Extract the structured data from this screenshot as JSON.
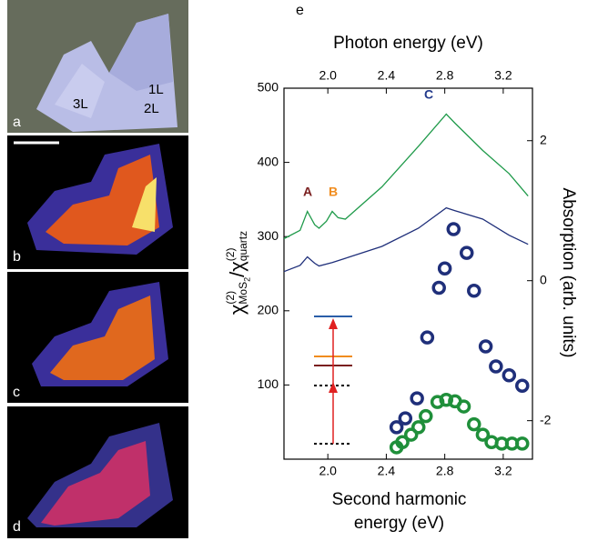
{
  "panels": [
    {
      "label": "a",
      "annotations": [
        "3L",
        "2L",
        "1L"
      ]
    },
    {
      "label": "b"
    },
    {
      "label": "c"
    },
    {
      "label": "d"
    }
  ],
  "figure_label": "e",
  "chart_data": {
    "type": "scatter",
    "xlabel_lines": [
      "Second harmonic",
      "energy (eV)"
    ],
    "top_xlabel": "Photon energy (eV)",
    "ylabel_parts": [
      {
        "text": "χ"
      },
      {
        "text": "(2)",
        "pos": "sup"
      },
      {
        "text": "MoS",
        "pos": "sub"
      },
      {
        "text": "2",
        "pos": "subsub"
      },
      {
        "text": "/χ"
      },
      {
        "text": "(2)",
        "pos": "sup"
      },
      {
        "text": "quartz",
        "pos": "sub"
      }
    ],
    "y2label": "Absorption (arb. units)",
    "xlim": [
      1.7,
      3.4
    ],
    "xticks": [
      {
        "value": 2,
        "label": "2.0"
      },
      2.4,
      2.8,
      3.2
    ],
    "x2ticks": [
      {
        "value": 2,
        "label": "2.0"
      },
      2.4,
      2.8,
      3.2
    ],
    "ylim": [
      0,
      500
    ],
    "yticks": [
      100,
      200,
      300,
      400,
      500
    ],
    "y2lim": [
      -2.55,
      2.75
    ],
    "y2ticks": [
      -2,
      0,
      2
    ],
    "peaks": [
      {
        "text": "A",
        "color": "#7a1f1f"
      },
      {
        "text": "B",
        "color": "#f08c1e"
      },
      {
        "text": "C",
        "color": "#233a8c"
      }
    ],
    "series": [
      {
        "color": "#1f2f7a",
        "x": [
          2.47,
          2.53,
          2.61,
          2.68,
          2.76,
          2.8,
          2.86,
          2.95,
          3.0,
          3.08,
          3.15,
          3.24,
          3.33
        ],
        "values": [
          43,
          55,
          82,
          164,
          231,
          257,
          310,
          278,
          227,
          152,
          125,
          113,
          99
        ]
      },
      {
        "color": "#1f8f3a",
        "x": [
          2.47,
          2.51,
          2.57,
          2.62,
          2.67,
          2.75,
          2.81,
          2.87,
          2.93,
          3.0,
          3.06,
          3.12,
          3.19,
          3.26,
          3.33
        ],
        "values": [
          16,
          23,
          33,
          43,
          58,
          77,
          80,
          78,
          71,
          47,
          33,
          23,
          21,
          21,
          21
        ]
      }
    ],
    "lines": [
      {
        "color": "#1f9a4a",
        "axis": "y2",
        "x": [
          1.7,
          1.81,
          1.86,
          1.91,
          1.94,
          1.99,
          2.03,
          2.07,
          2.12,
          2.37,
          2.62,
          2.81,
          2.87,
          3.06,
          3.24,
          3.37
        ],
        "values": [
          0.6,
          0.72,
          0.99,
          0.8,
          0.75,
          0.85,
          0.99,
          0.9,
          0.88,
          1.34,
          1.92,
          2.38,
          2.25,
          1.86,
          1.53,
          1.21
        ]
      },
      {
        "color": "#1f2f7a",
        "axis": "y2",
        "x": [
          1.7,
          1.81,
          1.86,
          1.91,
          1.94,
          2.03,
          2.12,
          2.37,
          2.62,
          2.81,
          2.87,
          3.06,
          3.24,
          3.37
        ],
        "values": [
          0.13,
          0.22,
          0.34,
          0.25,
          0.21,
          0.26,
          0.32,
          0.49,
          0.75,
          1.04,
          1.0,
          0.88,
          0.65,
          0.52
        ]
      }
    ]
  }
}
